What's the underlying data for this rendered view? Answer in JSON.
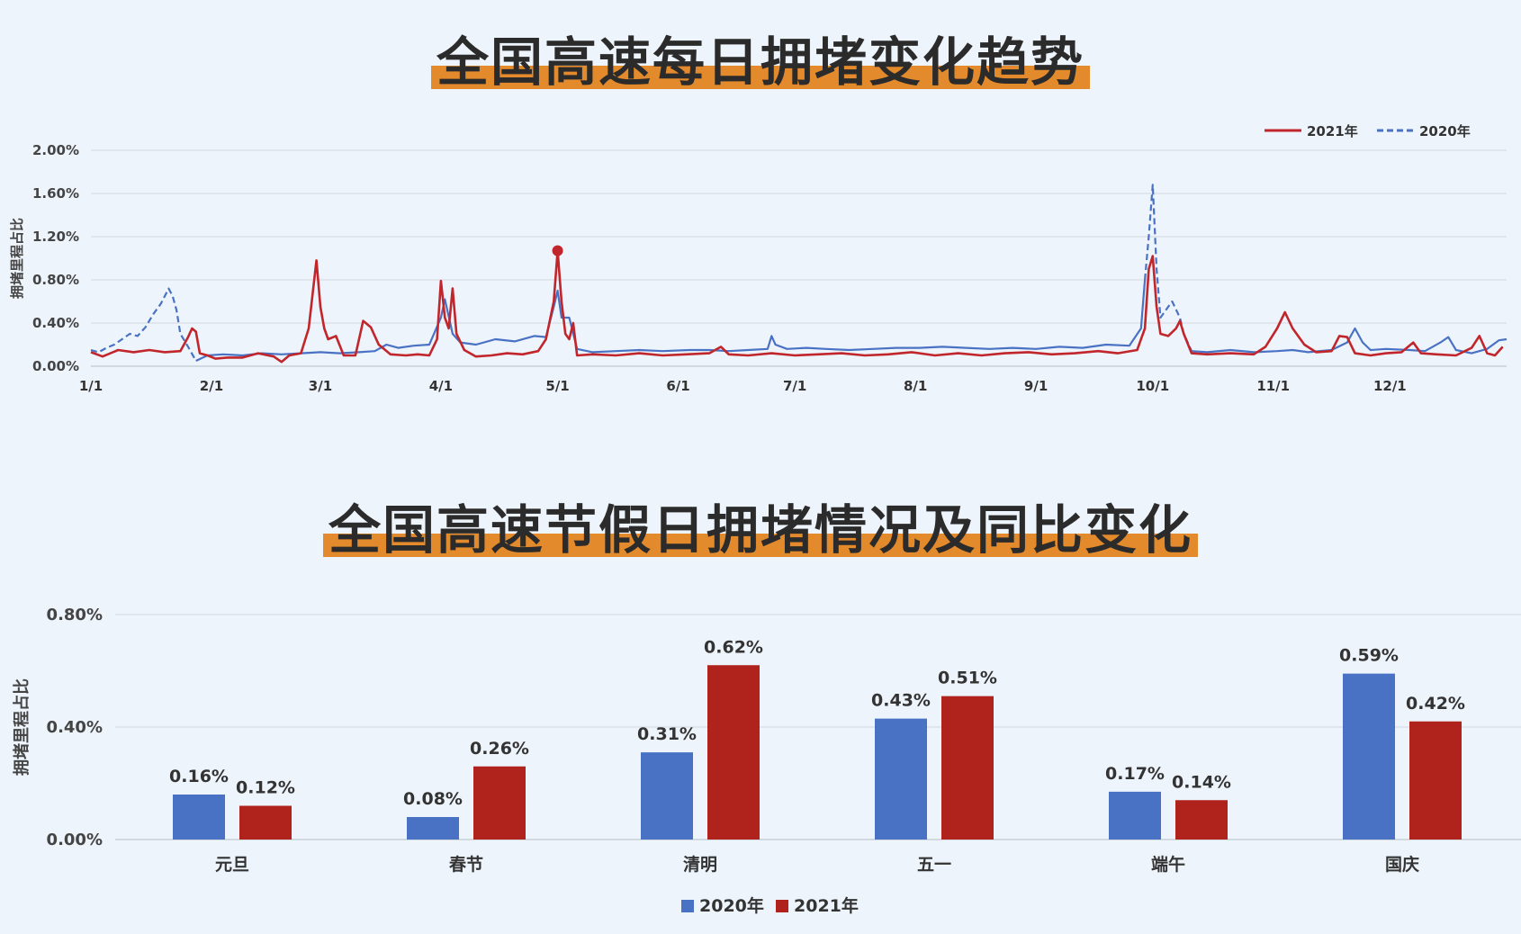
{
  "colors": {
    "series_2021_line": "#c0262b",
    "series_2020_line": "#4a72c4",
    "bar_2020": "#4a72c4",
    "bar_2021": "#b0231c",
    "title_highlight": "#e38a2c",
    "background": "#eef4fb"
  },
  "chart_data": [
    {
      "type": "line",
      "title": "全国高速每日拥堵变化趋势",
      "xlabel": "",
      "ylabel": "拥堵里程占比",
      "x_tick_labels": [
        "1/1",
        "2/1",
        "3/1",
        "4/1",
        "5/1",
        "6/1",
        "7/1",
        "8/1",
        "9/1",
        "10/1",
        "11/1",
        "12/1"
      ],
      "x_tick_days": [
        1,
        32,
        60,
        91,
        121,
        152,
        182,
        213,
        244,
        274,
        305,
        335
      ],
      "x_range": [
        1,
        365
      ],
      "y_tick_labels": [
        "0.00%",
        "0.40%",
        "0.80%",
        "1.20%",
        "1.60%",
        "2.00%"
      ],
      "ylim": [
        0,
        2.0
      ],
      "y_unit": "%",
      "grid": true,
      "legend_position": "top-right",
      "highlight_point": {
        "series": "2021年",
        "day": 121,
        "value": 1.07
      },
      "series": [
        {
          "name": "2021年",
          "style": "solid",
          "points": [
            [
              1,
              0.13
            ],
            [
              4,
              0.09
            ],
            [
              8,
              0.15
            ],
            [
              12,
              0.13
            ],
            [
              16,
              0.15
            ],
            [
              20,
              0.13
            ],
            [
              24,
              0.14
            ],
            [
              26,
              0.27
            ],
            [
              27,
              0.35
            ],
            [
              28,
              0.32
            ],
            [
              29,
              0.12
            ],
            [
              31,
              0.1
            ],
            [
              33,
              0.07
            ],
            [
              36,
              0.08
            ],
            [
              40,
              0.08
            ],
            [
              44,
              0.12
            ],
            [
              48,
              0.09
            ],
            [
              50,
              0.04
            ],
            [
              52,
              0.1
            ],
            [
              55,
              0.12
            ],
            [
              57,
              0.35
            ],
            [
              59,
              0.98
            ],
            [
              60,
              0.55
            ],
            [
              61,
              0.35
            ],
            [
              62,
              0.25
            ],
            [
              64,
              0.28
            ],
            [
              66,
              0.1
            ],
            [
              69,
              0.1
            ],
            [
              71,
              0.42
            ],
            [
              73,
              0.36
            ],
            [
              75,
              0.2
            ],
            [
              78,
              0.11
            ],
            [
              82,
              0.1
            ],
            [
              85,
              0.11
            ],
            [
              88,
              0.1
            ],
            [
              90,
              0.25
            ],
            [
              91,
              0.79
            ],
            [
              92,
              0.45
            ],
            [
              93,
              0.35
            ],
            [
              94,
              0.72
            ],
            [
              95,
              0.3
            ],
            [
              97,
              0.15
            ],
            [
              100,
              0.09
            ],
            [
              104,
              0.1
            ],
            [
              108,
              0.12
            ],
            [
              112,
              0.11
            ],
            [
              116,
              0.14
            ],
            [
              118,
              0.25
            ],
            [
              120,
              0.6
            ],
            [
              121,
              1.07
            ],
            [
              122,
              0.6
            ],
            [
              123,
              0.3
            ],
            [
              124,
              0.25
            ],
            [
              125,
              0.4
            ],
            [
              126,
              0.1
            ],
            [
              130,
              0.11
            ],
            [
              136,
              0.1
            ],
            [
              142,
              0.12
            ],
            [
              148,
              0.1
            ],
            [
              154,
              0.11
            ],
            [
              160,
              0.12
            ],
            [
              163,
              0.18
            ],
            [
              165,
              0.11
            ],
            [
              170,
              0.1
            ],
            [
              176,
              0.12
            ],
            [
              182,
              0.1
            ],
            [
              188,
              0.11
            ],
            [
              194,
              0.12
            ],
            [
              200,
              0.1
            ],
            [
              206,
              0.11
            ],
            [
              212,
              0.13
            ],
            [
              218,
              0.1
            ],
            [
              224,
              0.12
            ],
            [
              230,
              0.1
            ],
            [
              236,
              0.12
            ],
            [
              242,
              0.13
            ],
            [
              248,
              0.11
            ],
            [
              254,
              0.12
            ],
            [
              260,
              0.14
            ],
            [
              265,
              0.12
            ],
            [
              270,
              0.15
            ],
            [
              272,
              0.35
            ],
            [
              273,
              0.9
            ],
            [
              274,
              1.02
            ],
            [
              275,
              0.55
            ],
            [
              276,
              0.3
            ],
            [
              278,
              0.28
            ],
            [
              280,
              0.35
            ],
            [
              281,
              0.42
            ],
            [
              282,
              0.3
            ],
            [
              284,
              0.12
            ],
            [
              288,
              0.11
            ],
            [
              294,
              0.12
            ],
            [
              300,
              0.11
            ],
            [
              303,
              0.18
            ],
            [
              306,
              0.35
            ],
            [
              308,
              0.5
            ],
            [
              310,
              0.35
            ],
            [
              313,
              0.2
            ],
            [
              316,
              0.13
            ],
            [
              320,
              0.14
            ],
            [
              322,
              0.28
            ],
            [
              324,
              0.27
            ],
            [
              326,
              0.12
            ],
            [
              330,
              0.1
            ],
            [
              334,
              0.12
            ],
            [
              338,
              0.13
            ],
            [
              341,
              0.22
            ],
            [
              343,
              0.12
            ],
            [
              347,
              0.11
            ],
            [
              352,
              0.1
            ],
            [
              356,
              0.17
            ],
            [
              358,
              0.28
            ],
            [
              360,
              0.12
            ],
            [
              362,
              0.1
            ],
            [
              364,
              0.18
            ]
          ]
        },
        {
          "name": "2020年",
          "style": "dashed",
          "points": [
            [
              1,
              0.15
            ],
            [
              3,
              0.13
            ],
            [
              5,
              0.17
            ],
            [
              7,
              0.2
            ],
            [
              9,
              0.25
            ],
            [
              11,
              0.3
            ],
            [
              13,
              0.28
            ],
            [
              15,
              0.36
            ],
            [
              17,
              0.48
            ],
            [
              19,
              0.58
            ],
            [
              21,
              0.72
            ],
            [
              22,
              0.65
            ],
            [
              23,
              0.52
            ],
            [
              24,
              0.3
            ],
            [
              26,
              0.18
            ],
            [
              28,
              0.05
            ]
          ]
        },
        {
          "name": "2020年",
          "style": "solid",
          "points": [
            [
              28,
              0.05
            ],
            [
              31,
              0.1
            ],
            [
              35,
              0.11
            ],
            [
              40,
              0.1
            ],
            [
              45,
              0.12
            ],
            [
              50,
              0.11
            ],
            [
              55,
              0.12
            ],
            [
              60,
              0.13
            ],
            [
              65,
              0.12
            ],
            [
              70,
              0.13
            ],
            [
              74,
              0.14
            ],
            [
              77,
              0.2
            ],
            [
              80,
              0.17
            ],
            [
              84,
              0.19
            ],
            [
              88,
              0.2
            ],
            [
              91,
              0.45
            ],
            [
              92,
              0.62
            ],
            [
              94,
              0.3
            ],
            [
              96,
              0.22
            ],
            [
              100,
              0.2
            ],
            [
              105,
              0.25
            ],
            [
              110,
              0.23
            ],
            [
              115,
              0.28
            ],
            [
              118,
              0.27
            ],
            [
              120,
              0.55
            ],
            [
              121,
              0.7
            ],
            [
              122,
              0.45
            ],
            [
              124,
              0.45
            ],
            [
              126,
              0.16
            ],
            [
              130,
              0.13
            ],
            [
              136,
              0.14
            ],
            [
              142,
              0.15
            ],
            [
              148,
              0.14
            ],
            [
              155,
              0.15
            ],
            [
              160,
              0.15
            ],
            [
              165,
              0.14
            ],
            [
              170,
              0.15
            ],
            [
              175,
              0.16
            ],
            [
              176,
              0.28
            ],
            [
              177,
              0.2
            ],
            [
              180,
              0.16
            ],
            [
              185,
              0.17
            ],
            [
              190,
              0.16
            ],
            [
              196,
              0.15
            ],
            [
              202,
              0.16
            ],
            [
              208,
              0.17
            ],
            [
              214,
              0.17
            ],
            [
              220,
              0.18
            ],
            [
              226,
              0.17
            ],
            [
              232,
              0.16
            ],
            [
              238,
              0.17
            ],
            [
              244,
              0.16
            ],
            [
              250,
              0.18
            ],
            [
              256,
              0.17
            ],
            [
              262,
              0.2
            ],
            [
              268,
              0.19
            ],
            [
              271,
              0.35
            ],
            [
              272,
              0.8
            ]
          ]
        },
        {
          "name": "2020年",
          "style": "dashed",
          "points": [
            [
              272,
              0.8
            ],
            [
              273,
              1.2
            ],
            [
              274,
              1.68
            ],
            [
              275,
              0.9
            ],
            [
              276,
              0.45
            ],
            [
              278,
              0.55
            ],
            [
              279,
              0.6
            ],
            [
              281,
              0.45
            ],
            [
              282,
              0.3
            ],
            [
              284,
              0.14
            ]
          ]
        },
        {
          "name": "2020年",
          "style": "solid",
          "points": [
            [
              284,
              0.14
            ],
            [
              288,
              0.13
            ],
            [
              294,
              0.15
            ],
            [
              300,
              0.13
            ],
            [
              306,
              0.14
            ],
            [
              310,
              0.15
            ],
            [
              314,
              0.13
            ],
            [
              320,
              0.15
            ],
            [
              324,
              0.22
            ],
            [
              326,
              0.35
            ],
            [
              328,
              0.22
            ],
            [
              330,
              0.15
            ],
            [
              334,
              0.16
            ],
            [
              340,
              0.15
            ],
            [
              344,
              0.14
            ],
            [
              348,
              0.22
            ],
            [
              350,
              0.27
            ],
            [
              352,
              0.15
            ],
            [
              356,
              0.12
            ],
            [
              360,
              0.16
            ],
            [
              363,
              0.24
            ],
            [
              365,
              0.25
            ]
          ]
        }
      ]
    },
    {
      "type": "bar",
      "title": "全国高速节假日拥堵情况及同比变化",
      "xlabel": "",
      "ylabel": "拥堵里程占比",
      "categories": [
        "元旦",
        "春节",
        "清明",
        "五一",
        "端午",
        "国庆"
      ],
      "y_tick_labels": [
        "0.00%",
        "0.40%",
        "0.80%"
      ],
      "ylim": [
        0,
        0.8
      ],
      "y_unit": "%",
      "grid": true,
      "legend_position": "bottom-center",
      "series": [
        {
          "name": "2020年",
          "values": [
            0.16,
            0.08,
            0.31,
            0.43,
            0.17,
            0.59
          ],
          "labels": [
            "0.16%",
            "0.08%",
            "0.31%",
            "0.43%",
            "0.17%",
            "0.59%"
          ]
        },
        {
          "name": "2021年",
          "values": [
            0.12,
            0.26,
            0.62,
            0.51,
            0.14,
            0.42
          ],
          "labels": [
            "0.12%",
            "0.26%",
            "0.62%",
            "0.51%",
            "0.14%",
            "0.42%"
          ]
        }
      ]
    }
  ]
}
